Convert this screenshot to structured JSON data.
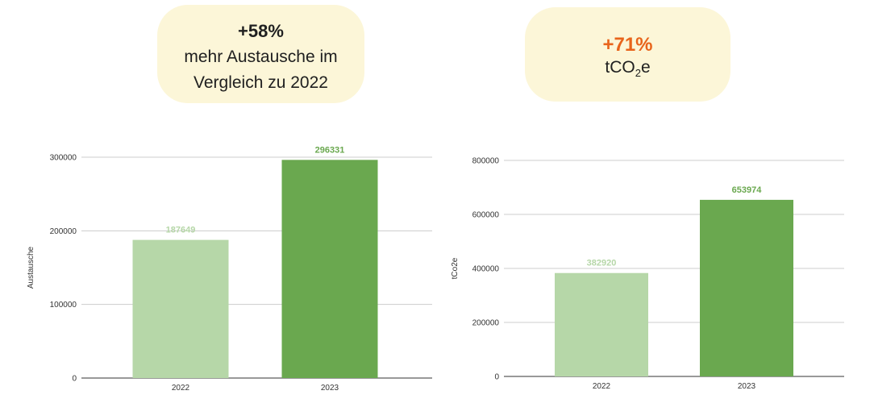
{
  "callouts": {
    "left": {
      "pct": "+58%",
      "text": "mehr Austausche im Vergleich zu 2022"
    },
    "right": {
      "pct": "+71%",
      "text_prefix": "tCO",
      "text_sub": "2",
      "text_suffix": "e"
    }
  },
  "chart_data": [
    {
      "type": "bar",
      "categories": [
        "2022",
        "2023"
      ],
      "values": [
        187649,
        296331
      ],
      "ylabel": "Austausche",
      "ylim": [
        0,
        300000
      ],
      "yticks": [
        0,
        100000,
        200000,
        300000
      ],
      "grid": true,
      "colors": [
        "#b6d7a8",
        "#6aa84f"
      ]
    },
    {
      "type": "bar",
      "categories": [
        "2022",
        "2023"
      ],
      "values": [
        382920,
        653974
      ],
      "ylabel": "tCo2e",
      "ylim": [
        0,
        800000
      ],
      "yticks": [
        0,
        200000,
        400000,
        600000,
        800000
      ],
      "grid": true,
      "colors": [
        "#b6d7a8",
        "#6aa84f"
      ]
    }
  ]
}
